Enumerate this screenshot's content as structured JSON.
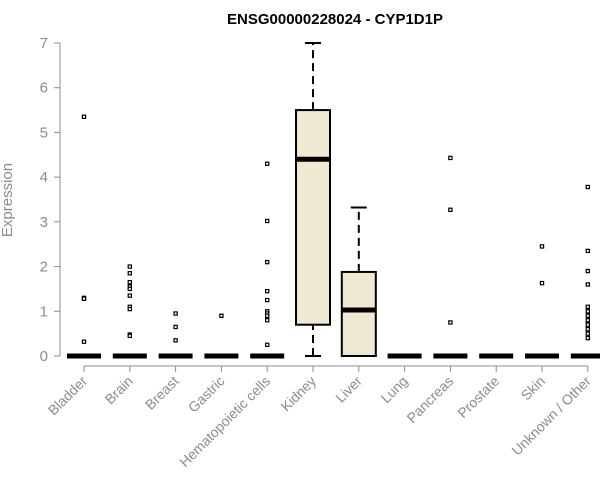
{
  "chart_data": {
    "type": "box",
    "title": "ENSG00000228024 - CYP1D1P",
    "xlabel": "",
    "ylabel": "Expression",
    "ylim": [
      0,
      7
    ],
    "yticks": [
      0,
      1,
      2,
      3,
      4,
      5,
      6,
      7
    ],
    "grid": false,
    "colors": {
      "box_fill": "#efe9d2",
      "box_stroke": "#000000",
      "axis": "#8c8c8c"
    },
    "categories": [
      "Bladder",
      "Brain",
      "Breast",
      "Gastric",
      "Hematopoietic cells",
      "Kidney",
      "Liver",
      "Lung",
      "Pancreas",
      "Prostate",
      "Skin",
      "Unknown / Other"
    ],
    "boxes": [
      {
        "category": "Bladder",
        "min": 0,
        "q1": 0,
        "median": 0,
        "q3": 0,
        "max": 0,
        "outliers": [
          5.35,
          1.3,
          1.28,
          0.32
        ]
      },
      {
        "category": "Brain",
        "min": 0,
        "q1": 0,
        "median": 0,
        "q3": 0,
        "max": 0,
        "outliers": [
          2.0,
          1.85,
          1.65,
          1.55,
          1.5,
          1.35,
          1.1,
          1.05,
          0.48,
          0.45
        ]
      },
      {
        "category": "Breast",
        "min": 0,
        "q1": 0,
        "median": 0,
        "q3": 0,
        "max": 0,
        "outliers": [
          0.95,
          0.65,
          0.35
        ]
      },
      {
        "category": "Gastric",
        "min": 0,
        "q1": 0,
        "median": 0,
        "q3": 0,
        "max": 0,
        "outliers": [
          0.9
        ]
      },
      {
        "category": "Hematopoietic cells",
        "min": 0,
        "q1": 0,
        "median": 0,
        "q3": 0,
        "max": 0,
        "outliers": [
          4.3,
          3.02,
          2.1,
          1.45,
          1.25,
          1.0,
          0.95,
          0.9,
          0.8,
          0.25
        ]
      },
      {
        "category": "Kidney",
        "min": 0,
        "q1": 0.7,
        "median": 4.4,
        "q3": 5.5,
        "max": 7.0,
        "outliers": []
      },
      {
        "category": "Liver",
        "min": 0,
        "q1": 0,
        "median": 1.03,
        "q3": 1.88,
        "max": 3.32,
        "outliers": []
      },
      {
        "category": "Lung",
        "min": 0,
        "q1": 0,
        "median": 0,
        "q3": 0,
        "max": 0,
        "outliers": []
      },
      {
        "category": "Pancreas",
        "min": 0,
        "q1": 0,
        "median": 0,
        "q3": 0,
        "max": 0,
        "outliers": [
          4.43,
          3.27,
          0.75
        ]
      },
      {
        "category": "Prostate",
        "min": 0,
        "q1": 0,
        "median": 0,
        "q3": 0,
        "max": 0,
        "outliers": []
      },
      {
        "category": "Skin",
        "min": 0,
        "q1": 0,
        "median": 0,
        "q3": 0,
        "max": 0,
        "outliers": [
          2.45,
          1.63
        ]
      },
      {
        "category": "Unknown / Other",
        "min": 0,
        "q1": 0,
        "median": 0,
        "q3": 0,
        "max": 0,
        "outliers": [
          3.78,
          2.35,
          1.9,
          1.6,
          1.1,
          1.0,
          0.9,
          0.8,
          0.7,
          0.6,
          0.5,
          0.4
        ]
      }
    ]
  }
}
